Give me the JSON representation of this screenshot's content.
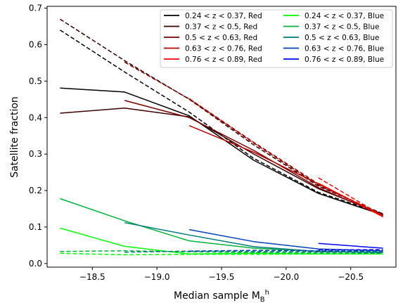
{
  "chart_data": {
    "type": "line",
    "title": "",
    "xlabel": "Median sample M",
    "xlabel_sub": "B",
    "xlabel_sup": "h",
    "ylabel": "Satellite fraction",
    "xlim": [
      -18.15,
      -20.85
    ],
    "ylim": [
      -0.01,
      0.705
    ],
    "x_ticks": [
      -18.5,
      -19.0,
      -19.5,
      -20.0,
      -20.5
    ],
    "x_tick_labels": [
      "−18.5",
      "−19.0",
      "−19.5",
      "−20.0",
      "−20.5"
    ],
    "y_ticks": [
      0.0,
      0.1,
      0.2,
      0.3,
      0.4,
      0.5,
      0.6,
      0.7
    ],
    "y_tick_labels": [
      "0.0",
      "0.1",
      "0.2",
      "0.3",
      "0.4",
      "0.5",
      "0.6",
      "0.7"
    ],
    "grid": false,
    "legend_position": "top-right",
    "legend_columns": 2,
    "series": [
      {
        "name": "0.24 < z < 0.37, Red",
        "color": "#000000",
        "x": [
          -18.25,
          -18.75,
          -19.25,
          -19.75,
          -20.25,
          -20.75
        ],
        "solid": [
          0.481,
          0.47,
          0.405,
          0.283,
          0.192,
          0.133
        ],
        "dashed": [
          0.64,
          0.525,
          0.415,
          0.288,
          0.195,
          0.136
        ]
      },
      {
        "name": "0.37 < z < 0.5, Red",
        "color": "#3a0000",
        "x": [
          -18.25,
          -18.75,
          -19.25,
          -19.75,
          -20.25,
          -20.75
        ],
        "solid": [
          0.412,
          0.426,
          0.402,
          0.3,
          0.205,
          0.135
        ],
        "dashed": [
          0.67,
          0.556,
          0.45,
          0.325,
          0.212,
          0.136
        ]
      },
      {
        "name": "0.5 < z < 0.63, Red",
        "color": "#7a0000",
        "x": [
          -18.75,
          -19.25,
          -19.75,
          -20.25,
          -20.75
        ],
        "solid": [
          0.447,
          0.4,
          0.31,
          0.208,
          0.132
        ],
        "dashed": [
          0.552,
          0.451,
          0.33,
          0.215,
          0.133
        ]
      },
      {
        "name": "0.63 < z < 0.76, Red",
        "color": "#b80000",
        "x": [
          -19.25,
          -19.75,
          -20.25,
          -20.75
        ],
        "solid": [
          0.378,
          0.305,
          0.218,
          0.13
        ],
        "dashed": [
          0.452,
          0.332,
          0.218,
          0.132
        ]
      },
      {
        "name": "0.76 < z < 0.89, Red",
        "color": "#ff0000",
        "x": [
          -20.25,
          -20.75
        ],
        "solid": [
          0.22,
          0.128
        ],
        "dashed": [
          0.235,
          0.13
        ]
      },
      {
        "name": "0.24 < z < 0.37, Blue",
        "color": "#00ff00",
        "x": [
          -18.25,
          -18.75,
          -19.25,
          -19.75,
          -20.25,
          -20.75
        ],
        "solid": [
          0.097,
          0.047,
          0.026,
          0.028,
          0.026,
          0.026
        ],
        "dashed": [
          0.028,
          0.024,
          0.025,
          0.025,
          0.026,
          0.026
        ]
      },
      {
        "name": "0.37 < z < 0.5, Blue",
        "color": "#00b33c",
        "x": [
          -18.25,
          -18.75,
          -19.25,
          -19.75,
          -20.25,
          -20.75
        ],
        "solid": [
          0.178,
          0.117,
          0.062,
          0.042,
          0.033,
          0.031
        ],
        "dashed": [
          0.033,
          0.035,
          0.032,
          0.03,
          0.029,
          0.028
        ]
      },
      {
        "name": "0.5 < z < 0.63, Blue",
        "color": "#007a7a",
        "x": [
          -18.75,
          -19.25,
          -19.75,
          -20.25,
          -20.75
        ],
        "solid": [
          0.112,
          0.078,
          0.046,
          0.033,
          0.03
        ],
        "dashed": [
          0.031,
          0.034,
          0.033,
          0.032,
          0.031
        ]
      },
      {
        "name": "0.63 < z < 0.76, Blue",
        "color": "#0040b8",
        "x": [
          -19.25,
          -19.75,
          -20.25,
          -20.75
        ],
        "solid": [
          0.093,
          0.06,
          0.04,
          0.035
        ],
        "dashed": [
          0.034,
          0.036,
          0.035,
          0.034
        ]
      },
      {
        "name": "0.76 < z < 0.89, Blue",
        "color": "#0000ff",
        "x": [
          -20.25,
          -20.75
        ],
        "solid": [
          0.055,
          0.042
        ],
        "dashed": [
          0.037,
          0.038
        ]
      }
    ]
  }
}
